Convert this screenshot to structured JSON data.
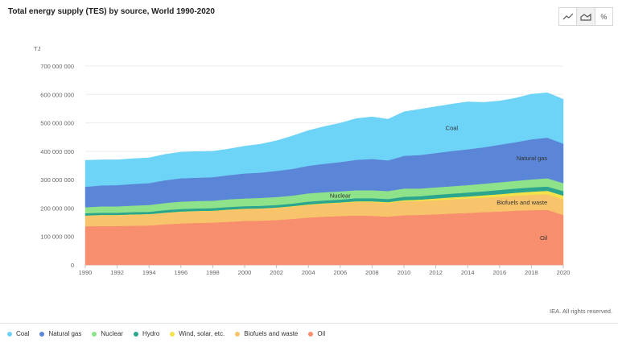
{
  "header": {
    "title": "Total energy supply (TES) by source, World 1990-2020"
  },
  "toolbar": {
    "buttons": [
      {
        "icon": "line-chart-icon"
      },
      {
        "icon": "area-chart-icon",
        "active": true
      },
      {
        "label": "%"
      }
    ]
  },
  "footer": {
    "credit": "IEA. All rights reserved."
  },
  "legend": [
    {
      "label": "Coal",
      "color": "#6dd3f7"
    },
    {
      "label": "Natural gas",
      "color": "#5b85d6"
    },
    {
      "label": "Nuclear",
      "color": "#8ee28a"
    },
    {
      "label": "Hydro",
      "color": "#2ca58f"
    },
    {
      "label": "Wind, solar, etc.",
      "color": "#f3e24a"
    },
    {
      "label": "Biofuels and waste",
      "color": "#f7c46c"
    },
    {
      "label": "Oil",
      "color": "#f78f6f"
    }
  ],
  "chart_data": {
    "type": "area",
    "stacked": true,
    "unit_label": "TJ",
    "ylim": [
      0,
      700000000
    ],
    "y_ticks": [
      0,
      100000000,
      200000000,
      300000000,
      400000000,
      500000000,
      600000000,
      700000000
    ],
    "y_tick_labels": [
      "0",
      "100 000 000",
      "200 000 000",
      "300 000 000",
      "400 000 000",
      "500 000 000",
      "600 000 000",
      "700 000 000"
    ],
    "x_ticks": [
      1990,
      1992,
      1994,
      1996,
      1998,
      2000,
      2002,
      2004,
      2006,
      2008,
      2010,
      2012,
      2014,
      2016,
      2018,
      2020
    ],
    "grid": true,
    "x": [
      1990,
      1991,
      1992,
      1993,
      1994,
      1995,
      1996,
      1997,
      1998,
      1999,
      2000,
      2001,
      2002,
      2003,
      2004,
      2005,
      2006,
      2007,
      2008,
      2009,
      2010,
      2011,
      2012,
      2013,
      2014,
      2015,
      2016,
      2017,
      2018,
      2019,
      2020
    ],
    "series": [
      {
        "name": "Oil",
        "color": "#f78f6f",
        "label_year": 2019,
        "values": [
          136000000,
          137000000,
          137000000,
          138000000,
          139000000,
          143000000,
          146000000,
          148000000,
          149000000,
          152000000,
          155000000,
          156000000,
          158000000,
          162000000,
          167000000,
          170000000,
          172000000,
          174000000,
          173000000,
          170000000,
          175000000,
          176000000,
          178000000,
          181000000,
          183000000,
          186000000,
          188000000,
          191000000,
          193000000,
          194000000,
          176000000
        ]
      },
      {
        "name": "Biofuels and waste",
        "color": "#f7c46c",
        "label_year": 2019,
        "values": [
          37000000,
          38000000,
          38000000,
          39000000,
          39000000,
          40000000,
          41000000,
          41000000,
          41000000,
          42000000,
          42000000,
          42000000,
          43000000,
          43000000,
          44000000,
          45000000,
          46000000,
          47000000,
          48000000,
          48000000,
          49000000,
          49000000,
          50000000,
          50000000,
          51000000,
          51000000,
          52000000,
          53000000,
          54000000,
          55000000,
          55000000
        ]
      },
      {
        "name": "Wind, solar, etc.",
        "color": "#f3e24a",
        "values": [
          1000000,
          1000000,
          1000000,
          1000000,
          1000000,
          1000000,
          1000000,
          1000000,
          1000000,
          1000000,
          1000000,
          1000000,
          1000000,
          2000000,
          2000000,
          2000000,
          2000000,
          3000000,
          3000000,
          3000000,
          4000000,
          5000000,
          6000000,
          7000000,
          7000000,
          8000000,
          9000000,
          10000000,
          11000000,
          12000000,
          13000000
        ]
      },
      {
        "name": "Hydro",
        "color": "#2ca58f",
        "values": [
          8000000,
          8000000,
          8000000,
          8000000,
          8000000,
          9000000,
          9000000,
          9000000,
          9000000,
          9000000,
          9000000,
          9000000,
          9000000,
          9000000,
          10000000,
          10000000,
          10000000,
          11000000,
          11000000,
          11000000,
          12000000,
          12000000,
          13000000,
          13000000,
          14000000,
          14000000,
          15000000,
          15000000,
          15000000,
          15000000,
          16000000
        ]
      },
      {
        "name": "Nuclear",
        "color": "#8ee28a",
        "label_year": 2006,
        "values": [
          21000000,
          22000000,
          22000000,
          23000000,
          24000000,
          25000000,
          26000000,
          26000000,
          26000000,
          27000000,
          27000000,
          28000000,
          28000000,
          28000000,
          29000000,
          29000000,
          29000000,
          28000000,
          28000000,
          28000000,
          29000000,
          27000000,
          26000000,
          26000000,
          26000000,
          27000000,
          27000000,
          27000000,
          28000000,
          29000000,
          28000000
        ]
      },
      {
        "name": "Natural gas",
        "color": "#5b85d6",
        "label_year": 2019,
        "values": [
          72000000,
          74000000,
          75000000,
          76000000,
          77000000,
          80000000,
          82000000,
          82000000,
          83000000,
          85000000,
          88000000,
          89000000,
          92000000,
          94000000,
          97000000,
          100000000,
          103000000,
          107000000,
          110000000,
          108000000,
          115000000,
          118000000,
          121000000,
          124000000,
          126000000,
          128000000,
          132000000,
          136000000,
          141000000,
          143000000,
          139000000
        ]
      },
      {
        "name": "Coal",
        "color": "#6dd3f7",
        "label_year": 2013,
        "values": [
          93000000,
          90000000,
          89000000,
          89000000,
          89000000,
          91000000,
          92000000,
          92000000,
          91000000,
          92000000,
          96000000,
          100000000,
          106000000,
          116000000,
          124000000,
          131000000,
          137000000,
          145000000,
          148000000,
          145000000,
          155000000,
          161000000,
          163000000,
          165000000,
          167000000,
          158000000,
          154000000,
          155000000,
          159000000,
          158000000,
          156000000
        ]
      }
    ]
  }
}
